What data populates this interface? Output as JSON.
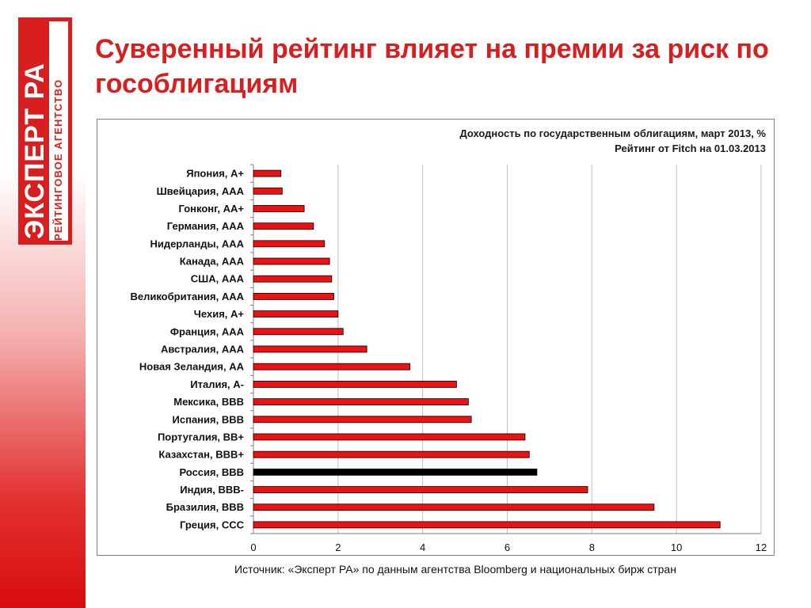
{
  "slide": {
    "title": "Суверенный рейтинг влияет на премии за риск по гособлигациям",
    "source": "Источник: «Эксперт РА» по данным агентства Bloomberg и национальных бирж стран"
  },
  "logo": {
    "main_text": "ЭКСПЕРТ РА",
    "sub_text": "РЕЙТИНГОВОЕ АГЕНТСТВО",
    "color": "#d81e1e"
  },
  "chart_data": {
    "type": "bar",
    "orientation": "horizontal",
    "title_line1": "Доходность по государственным облигациям, март 2013, %",
    "title_line2": "Рейтинг от Fitch на 01.03.2013",
    "categories": [
      "Япония, A+",
      "Швейцария, AAA",
      "Гонконг, AA+",
      "Германия, AAA",
      "Нидерланды, AAA",
      "Канада, AAA",
      "США, AAA",
      "Великобритания, AAA",
      "Чехия, A+",
      "Франция, AAA",
      "Австралия, AAA",
      "Новая Зеландия, AA",
      "Италия, A-",
      "Мексика, BBB",
      "Испания, BBB",
      "Португалия, BB+",
      "Казахстан, BBB+",
      "Россия, BBB",
      "Индия, BBB-",
      "Бразилия, BBB",
      "Греция, CCC"
    ],
    "values": [
      0.65,
      0.68,
      1.2,
      1.42,
      1.68,
      1.8,
      1.85,
      1.9,
      2.0,
      2.12,
      2.68,
      3.7,
      4.8,
      5.08,
      5.15,
      6.42,
      6.52,
      6.7,
      7.9,
      9.47,
      11.03
    ],
    "xlim": [
      0,
      12
    ],
    "xticks": [
      0,
      2,
      4,
      6,
      8,
      10,
      12
    ],
    "grid": "vertical",
    "colors": {
      "bar": "#ee1111",
      "highlight_bar": "#000000",
      "bar_outline": "#000000",
      "grid": "#bfbfbf"
    },
    "highlight": "Россия, BBB"
  }
}
